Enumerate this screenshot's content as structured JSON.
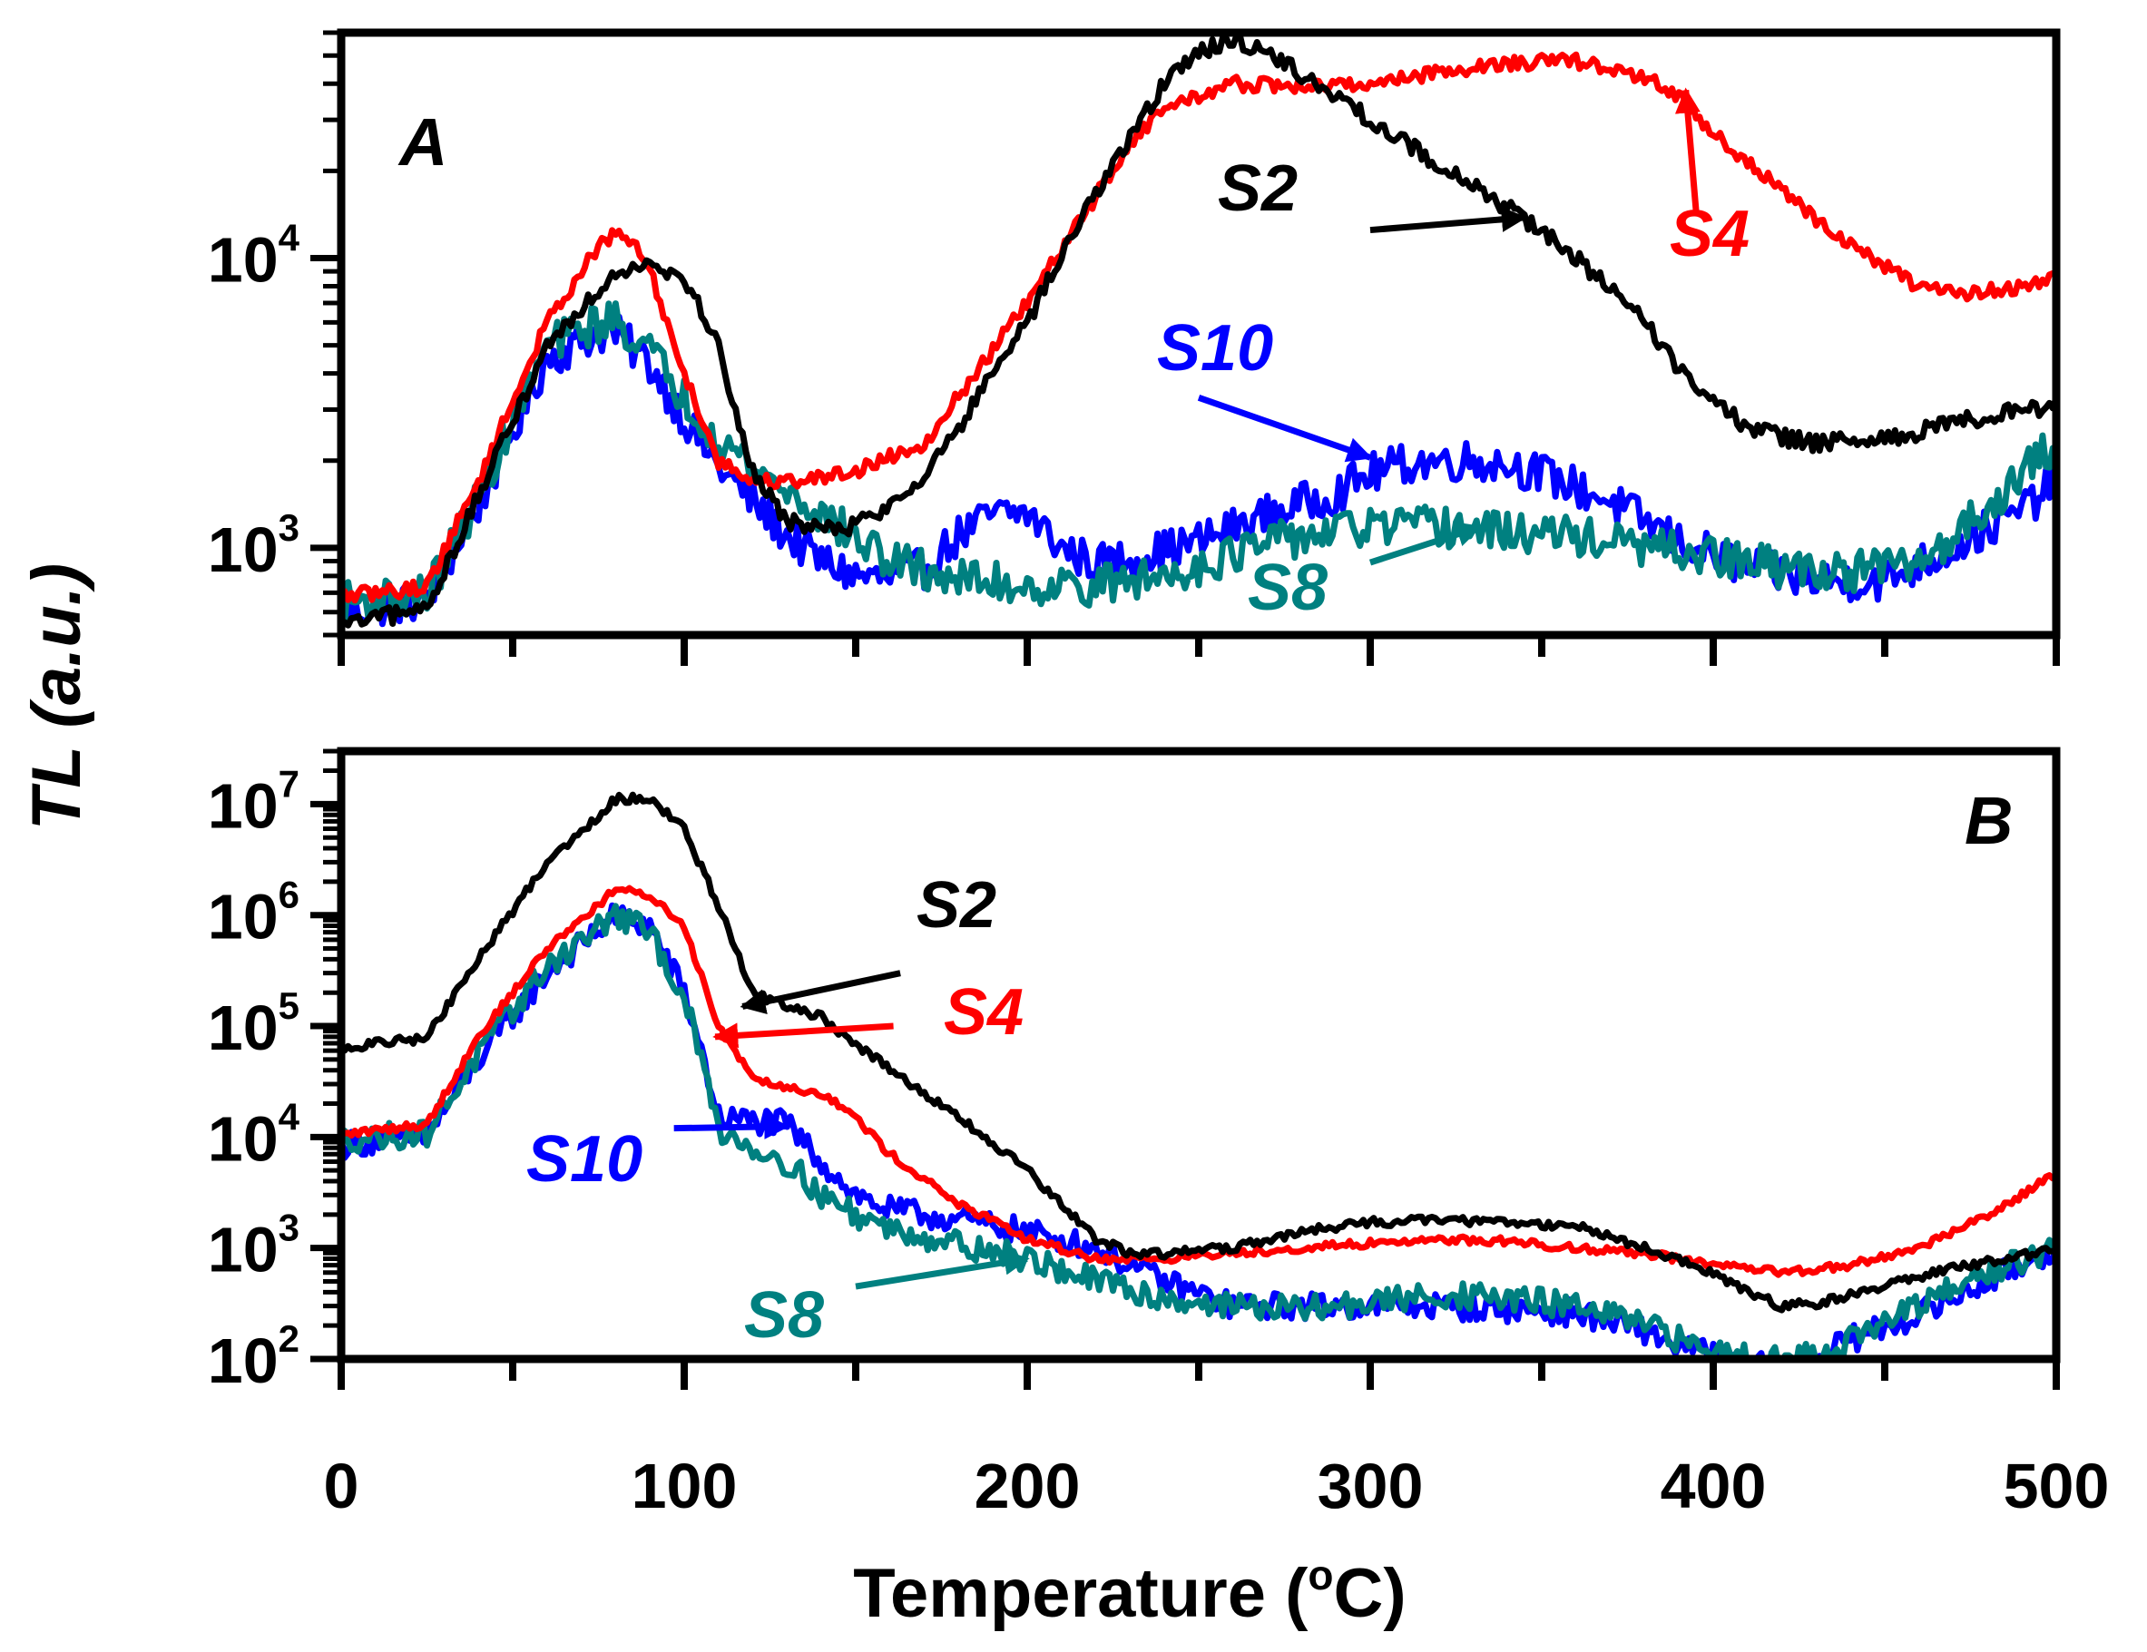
{
  "chart_data": {
    "shared": {
      "xlabel": "Temperature (",
      "xlabel_sup": "o",
      "xlabel_end": "C)",
      "ylabel": "TL (a.u.)",
      "xlim": [
        0,
        500
      ],
      "x_ticks": [
        0,
        100,
        200,
        300,
        400,
        500
      ],
      "x_tick_labels": [
        "0",
        "100",
        "200",
        "300",
        "400",
        "500"
      ]
    },
    "colors": {
      "S2": "#000000",
      "S4": "#ff0000",
      "S8": "#008080",
      "S10": "#0000ff"
    },
    "panels": [
      {
        "id": "A",
        "label": "A",
        "type": "line",
        "yscale": "log",
        "ylim": [
          500,
          60000
        ],
        "y_ticks": [
          {
            "value": 1000,
            "base": "10",
            "exp": "3"
          },
          {
            "value": 10000,
            "base": "10",
            "exp": "4"
          }
        ],
        "series": [
          {
            "name": "S2",
            "x": [
              0,
              20,
              25,
              40,
              60,
              80,
              90,
              100,
              110,
              120,
              130,
              140,
              150,
              160,
              170,
              180,
              200,
              220,
              240,
              250,
              260,
              270,
              280,
              300,
              320,
              340,
              350,
              360,
              380,
              390,
              400,
              410,
              420,
              430,
              450,
              470,
              490,
              500
            ],
            "y": [
              540,
              600,
              620,
              1500,
              5000,
              9000,
              9800,
              8500,
              5000,
              1800,
              1250,
              1150,
              1200,
              1400,
              1800,
              2600,
              6000,
              17000,
              40000,
              52000,
              56000,
              52000,
              43000,
              30000,
              21000,
              15000,
              12500,
              10000,
              6000,
              4200,
              3200,
              2600,
              2400,
              2300,
              2350,
              2700,
              3000,
              3100
            ],
            "noise": 0.03
          },
          {
            "name": "S4",
            "x": [
              0,
              20,
              25,
              40,
              60,
              75,
              80,
              85,
              90,
              100,
              110,
              120,
              130,
              140,
              150,
              170,
              200,
              230,
              240,
              260,
              280,
              300,
              320,
              340,
              360,
              380,
              390,
              400,
              420,
              440,
              460,
              470,
              480,
              490,
              500
            ],
            "y": [
              680,
              720,
              740,
              1700,
              6000,
              11000,
              12000,
              11500,
              9000,
              4000,
              2000,
              1700,
              1700,
              1750,
              1850,
              2300,
              7000,
              25000,
              33000,
              40000,
              39000,
              40000,
              44000,
              47000,
              48000,
              42000,
              36000,
              27000,
              17000,
              11000,
              8000,
              7500,
              7700,
              8000,
              8500
            ],
            "noise": 0.025
          },
          {
            "name": "S10",
            "x": [
              0,
              20,
              25,
              40,
              60,
              75,
              80,
              90,
              100,
              110,
              120,
              130,
              140,
              150,
              160,
              170,
              180,
              190,
              200,
              210,
              220,
              230,
              250,
              270,
              290,
              300,
              310,
              320,
              330,
              340,
              350,
              370,
              390,
              410,
              430,
              450,
              470,
              490,
              500
            ],
            "y": [
              600,
              650,
              660,
              1400,
              4500,
              5500,
              5500,
              4300,
              2800,
              1900,
              1450,
              1100,
              900,
              800,
              780,
              850,
              1100,
              1300,
              1320,
              1000,
              880,
              920,
              1050,
              1300,
              1550,
              1800,
              1950,
              2000,
              2000,
              1950,
              1800,
              1450,
              1050,
              850,
              770,
              770,
              1000,
              1350,
              1700
            ],
            "noise": 0.07
          },
          {
            "name": "S8",
            "x": [
              0,
              20,
              25,
              40,
              60,
              75,
              80,
              90,
              100,
              110,
              120,
              140,
              160,
              180,
              200,
              220,
              240,
              260,
              280,
              300,
              320,
              340,
              360,
              380,
              400,
              420,
              440,
              460,
              470,
              480,
              490,
              500
            ],
            "y": [
              650,
              680,
              690,
              1500,
              5000,
              6000,
              6100,
              4800,
              3300,
              2400,
              1900,
              1300,
              900,
              780,
              740,
              740,
              800,
              950,
              1100,
              1180,
              1180,
              1130,
              1100,
              1000,
              930,
              850,
              830,
              880,
              1100,
              1400,
              1800,
              2300
            ],
            "noise": 0.07
          }
        ],
        "annotations": [
          {
            "series": "S2",
            "text": "S2",
            "from": [
              300,
              12500
            ],
            "to": [
              345,
              13800
            ]
          },
          {
            "series": "S4",
            "text": "S4",
            "from": [
              395,
              14500
            ],
            "to": [
              392,
              38000
            ]
          },
          {
            "series": "S10",
            "text": "S10",
            "from": [
              250,
              3300
            ],
            "to": [
              300,
              2050
            ]
          },
          {
            "series": "S8",
            "text": "S8",
            "from": [
              300,
              890
            ],
            "to": [
              332,
              1180
            ]
          }
        ]
      },
      {
        "id": "B",
        "label": "B",
        "type": "line",
        "yscale": "log",
        "ylim": [
          100,
          30000000
        ],
        "y_ticks": [
          {
            "value": 100,
            "base": "10",
            "exp": "2"
          },
          {
            "value": 1000,
            "base": "10",
            "exp": "3"
          },
          {
            "value": 10000,
            "base": "10",
            "exp": "4"
          },
          {
            "value": 100000,
            "base": "10",
            "exp": "5"
          },
          {
            "value": 1000000,
            "base": "10",
            "exp": "6"
          },
          {
            "value": 10000000,
            "base": "10",
            "exp": "7"
          }
        ],
        "series": [
          {
            "name": "S2",
            "x": [
              0,
              10,
              20,
              25,
              40,
              60,
              80,
              90,
              100,
              110,
              120,
              130,
              140,
              160,
              180,
              200,
              220,
              230,
              240,
              260,
              280,
              300,
              320,
              340,
              360,
              380,
              400,
              410,
              420,
              430,
              440,
              450,
              460,
              470,
              480,
              490,
              500
            ],
            "y": [
              60000,
              70000,
              75000,
              80000,
              400000,
              3000000,
              11000000,
              11500000,
              6000000,
              1200000,
              200000,
              150000,
              120000,
              40000,
              15000,
              5000,
              1200,
              900,
              900,
              1000,
              1400,
              1700,
              1800,
              1700,
              1600,
              1000,
              600,
              400,
              300,
              320,
              380,
              450,
              550,
              650,
              750,
              850,
              950
            ],
            "noise": 0.04
          },
          {
            "name": "S4",
            "x": [
              0,
              10,
              20,
              25,
              40,
              60,
              80,
              90,
              100,
              110,
              120,
              130,
              140,
              150,
              160,
              180,
              200,
              220,
              240,
              260,
              280,
              300,
              320,
              340,
              360,
              380,
              400,
              420,
              440,
              460,
              480,
              490,
              500
            ],
            "y": [
              10500,
              11500,
              12500,
              13000,
              80000,
              500000,
              1700000,
              1500000,
              800000,
              100000,
              35000,
              28000,
              25000,
              15000,
              7000,
              2500,
              1200,
              800,
              800,
              900,
              1000,
              1100,
              1200,
              1150,
              1000,
              900,
              700,
              600,
              700,
              1000,
              2000,
              3000,
              4800
            ],
            "noise": 0.035
          },
          {
            "name": "S10",
            "x": [
              0,
              20,
              25,
              40,
              60,
              80,
              90,
              100,
              105,
              110,
              120,
              130,
              140,
              150,
              160,
              180,
              200,
              220,
              240,
              260,
              280,
              300,
              320,
              340,
              360,
              380,
              390,
              400,
              410,
              420,
              430,
              440,
              460,
              480,
              500
            ],
            "y": [
              8500,
              10000,
              10200,
              50000,
              300000,
              1000000,
              800000,
              200000,
              60000,
              15000,
              14000,
              13000,
              6000,
              3000,
              2200,
              1800,
              1400,
              1000,
              500,
              300,
              300,
              300,
              300,
              280,
              260,
              180,
              130,
              110,
              90,
              80,
              100,
              150,
              250,
              500,
              1000
            ],
            "noise": 0.12
          },
          {
            "name": "S8",
            "x": [
              0,
              20,
              25,
              40,
              60,
              80,
              90,
              100,
              105,
              110,
              120,
              130,
              140,
              150,
              160,
              180,
              200,
              220,
              240,
              260,
              280,
              300,
              320,
              340,
              360,
              380,
              390,
              400,
              410,
              420,
              430,
              440,
              460,
              480,
              500
            ],
            "y": [
              9500,
              10500,
              11000,
              55000,
              350000,
              1000000,
              700000,
              180000,
              50000,
              12000,
              8000,
              6000,
              3000,
              2000,
              1500,
              1100,
              800,
              500,
              350,
              300,
              280,
              320,
              380,
              350,
              300,
              200,
              150,
              120,
              110,
              100,
              110,
              150,
              300,
              600,
              1000
            ],
            "noise": 0.12
          }
        ],
        "annotations": [
          {
            "series": "S2",
            "text": "S2",
            "from": [
              163,
              300000
            ],
            "to": [
              117,
              150000
            ]
          },
          {
            "series": "S4",
            "text": "S4",
            "from": [
              161,
              100000
            ],
            "to": [
              109,
              80000
            ]
          },
          {
            "series": "S10",
            "text": "S10",
            "from": [
              97,
              12000
            ],
            "to": [
              130,
              12500
            ]
          },
          {
            "series": "S8",
            "text": "S8",
            "from": [
              150,
              450
            ],
            "to": [
              200,
              800
            ]
          }
        ]
      }
    ]
  }
}
